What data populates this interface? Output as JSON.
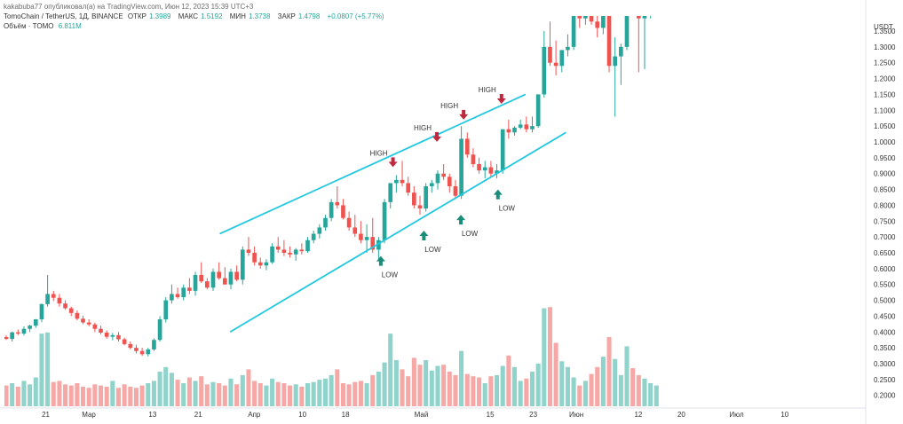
{
  "header": {
    "publisher": "kakabuba77 опубликовал(а) на TradingView.com, Июн 12, 2023 15:39 UTC+3",
    "symbol": "TomoChain / TetherUS, 1Д, BINANCE",
    "open_label": "ОТКР",
    "open_value": "1.3989",
    "high_label": "МАКС",
    "high_value": "1.5192",
    "low_label": "МИН",
    "low_value": "1.3738",
    "close_label": "ЗАКР",
    "close_value": "1.4798",
    "change": "+0.0807 (+5.77%)",
    "volume_label": "Объём · TOMO",
    "volume_value": "6.811M"
  },
  "colors": {
    "up": "#26a69a",
    "down": "#ef5350",
    "volume_up": "#8fd3cb",
    "volume_down": "#f5a8a6",
    "channel": "#22c8e0",
    "high_marker": "#c0283f",
    "low_marker": "#1c8c7a"
  },
  "chart_data": {
    "type": "candlestick",
    "currency_label": "USDT",
    "y_ticks": [
      "1.3500",
      "1.3000",
      "1.2500",
      "1.2000",
      "1.1500",
      "1.1000",
      "1.0500",
      "1.0000",
      "0.9500",
      "0.9000",
      "0.8500",
      "0.8000",
      "0.7500",
      "0.7000",
      "0.6500",
      "0.6000",
      "0.5500",
      "0.5000",
      "0.4500",
      "0.4000",
      "0.3500",
      "0.3000",
      "0.2500",
      "0.2000"
    ],
    "ylim": [
      0.16,
      1.42
    ],
    "x_ticks": [
      {
        "label": "21",
        "x": 0.048
      },
      {
        "label": "Мар",
        "x": 0.098
      },
      {
        "label": "13",
        "x": 0.172
      },
      {
        "label": "21",
        "x": 0.225
      },
      {
        "label": "Апр",
        "x": 0.29
      },
      {
        "label": "10",
        "x": 0.346
      },
      {
        "label": "18",
        "x": 0.396
      },
      {
        "label": "Май",
        "x": 0.484
      },
      {
        "label": "15",
        "x": 0.564
      },
      {
        "label": "23",
        "x": 0.614
      },
      {
        "label": "Июн",
        "x": 0.664
      },
      {
        "label": "12",
        "x": 0.736
      },
      {
        "label": "20",
        "x": 0.786
      },
      {
        "label": "Июл",
        "x": 0.85
      },
      {
        "label": "10",
        "x": 0.906
      }
    ],
    "annotations": [
      {
        "text": "HIGH",
        "kind": "high",
        "x": 0.447,
        "y": 0.94
      },
      {
        "text": "HIGH",
        "kind": "high",
        "x": 0.498,
        "y": 1.02
      },
      {
        "text": "HIGH",
        "kind": "high",
        "x": 0.529,
        "y": 1.09
      },
      {
        "text": "HIGH",
        "kind": "high",
        "x": 0.573,
        "y": 1.14
      },
      {
        "text": "LOW",
        "kind": "low",
        "x": 0.437,
        "y": 0.64
      },
      {
        "text": "LOW",
        "kind": "low",
        "x": 0.487,
        "y": 0.72
      },
      {
        "text": "LOW",
        "kind": "low",
        "x": 0.53,
        "y": 0.77
      },
      {
        "text": "LOW",
        "kind": "low",
        "x": 0.573,
        "y": 0.85
      }
    ],
    "channel_upper": {
      "x1": 0.25,
      "y1": 0.71,
      "x2": 0.605,
      "y2": 1.15
    },
    "channel_lower": {
      "x1": 0.262,
      "y1": 0.4,
      "x2": 0.652,
      "y2": 1.03
    },
    "candles": [
      [
        0.384,
        0.39,
        0.375,
        0.378
      ],
      [
        0.378,
        0.401,
        0.37,
        0.399
      ],
      [
        0.399,
        0.408,
        0.39,
        0.395
      ],
      [
        0.395,
        0.418,
        0.389,
        0.41
      ],
      [
        0.41,
        0.423,
        0.4,
        0.42
      ],
      [
        0.42,
        0.441,
        0.413,
        0.44
      ],
      [
        0.44,
        0.49,
        0.431,
        0.488
      ],
      [
        0.488,
        0.58,
        0.48,
        0.52
      ],
      [
        0.52,
        0.53,
        0.498,
        0.508
      ],
      [
        0.508,
        0.52,
        0.48,
        0.49
      ],
      [
        0.49,
        0.5,
        0.47,
        0.475
      ],
      [
        0.475,
        0.48,
        0.45,
        0.46
      ],
      [
        0.46,
        0.468,
        0.437,
        0.442
      ],
      [
        0.442,
        0.451,
        0.425,
        0.43
      ],
      [
        0.43,
        0.44,
        0.418,
        0.424
      ],
      [
        0.424,
        0.43,
        0.4,
        0.41
      ],
      [
        0.41,
        0.42,
        0.393,
        0.398
      ],
      [
        0.398,
        0.405,
        0.379,
        0.385
      ],
      [
        0.385,
        0.397,
        0.374,
        0.39
      ],
      [
        0.39,
        0.4,
        0.37,
        0.377
      ],
      [
        0.377,
        0.382,
        0.358,
        0.362
      ],
      [
        0.362,
        0.37,
        0.345,
        0.35
      ],
      [
        0.35,
        0.36,
        0.332,
        0.34
      ],
      [
        0.34,
        0.35,
        0.325,
        0.33
      ],
      [
        0.33,
        0.35,
        0.323,
        0.345
      ],
      [
        0.345,
        0.38,
        0.34,
        0.375
      ],
      [
        0.375,
        0.45,
        0.37,
        0.44
      ],
      [
        0.44,
        0.51,
        0.43,
        0.5
      ],
      [
        0.5,
        0.55,
        0.49,
        0.52
      ],
      [
        0.52,
        0.54,
        0.505,
        0.51
      ],
      [
        0.51,
        0.55,
        0.5,
        0.54
      ],
      [
        0.54,
        0.57,
        0.52,
        0.53
      ],
      [
        0.53,
        0.59,
        0.515,
        0.58
      ],
      [
        0.58,
        0.62,
        0.555,
        0.56
      ],
      [
        0.56,
        0.57,
        0.535,
        0.54
      ],
      [
        0.54,
        0.6,
        0.53,
        0.59
      ],
      [
        0.59,
        0.62,
        0.565,
        0.57
      ],
      [
        0.57,
        0.605,
        0.55,
        0.55
      ],
      [
        0.55,
        0.6,
        0.535,
        0.59
      ],
      [
        0.59,
        0.61,
        0.56,
        0.565
      ],
      [
        0.565,
        0.67,
        0.55,
        0.66
      ],
      [
        0.66,
        0.7,
        0.64,
        0.65
      ],
      [
        0.65,
        0.67,
        0.61,
        0.62
      ],
      [
        0.62,
        0.635,
        0.6,
        0.61
      ],
      [
        0.61,
        0.63,
        0.595,
        0.62
      ],
      [
        0.62,
        0.68,
        0.615,
        0.67
      ],
      [
        0.67,
        0.7,
        0.65,
        0.66
      ],
      [
        0.66,
        0.69,
        0.64,
        0.65
      ],
      [
        0.65,
        0.67,
        0.635,
        0.645
      ],
      [
        0.645,
        0.665,
        0.625,
        0.66
      ],
      [
        0.66,
        0.68,
        0.645,
        0.655
      ],
      [
        0.655,
        0.7,
        0.65,
        0.69
      ],
      [
        0.69,
        0.72,
        0.68,
        0.71
      ],
      [
        0.71,
        0.74,
        0.695,
        0.73
      ],
      [
        0.73,
        0.77,
        0.72,
        0.76
      ],
      [
        0.76,
        0.82,
        0.75,
        0.81
      ],
      [
        0.81,
        0.86,
        0.79,
        0.8
      ],
      [
        0.8,
        0.82,
        0.755,
        0.76
      ],
      [
        0.76,
        0.78,
        0.72,
        0.73
      ],
      [
        0.73,
        0.77,
        0.7,
        0.71
      ],
      [
        0.71,
        0.75,
        0.68,
        0.69
      ],
      [
        0.69,
        0.74,
        0.65,
        0.7
      ],
      [
        0.7,
        0.76,
        0.65,
        0.66
      ],
      [
        0.66,
        0.7,
        0.63,
        0.69
      ],
      [
        0.69,
        0.82,
        0.68,
        0.81
      ],
      [
        0.81,
        0.87,
        0.79,
        0.87
      ],
      [
        0.87,
        0.895,
        0.84,
        0.88
      ],
      [
        0.88,
        0.94,
        0.86,
        0.87
      ],
      [
        0.87,
        0.89,
        0.83,
        0.84
      ],
      [
        0.84,
        0.86,
        0.79,
        0.8
      ],
      [
        0.8,
        0.83,
        0.77,
        0.79
      ],
      [
        0.79,
        0.87,
        0.78,
        0.86
      ],
      [
        0.86,
        0.88,
        0.84,
        0.87
      ],
      [
        0.87,
        0.91,
        0.85,
        0.9
      ],
      [
        0.9,
        0.93,
        0.88,
        0.89
      ],
      [
        0.89,
        0.9,
        0.84,
        0.86
      ],
      [
        0.86,
        0.88,
        0.82,
        0.83
      ],
      [
        0.83,
        1.05,
        0.82,
        1.01
      ],
      [
        1.01,
        1.03,
        0.95,
        0.96
      ],
      [
        0.96,
        0.98,
        0.92,
        0.93
      ],
      [
        0.93,
        0.95,
        0.9,
        0.91
      ],
      [
        0.91,
        0.94,
        0.885,
        0.92
      ],
      [
        0.92,
        0.94,
        0.89,
        0.9
      ],
      [
        0.9,
        0.93,
        0.885,
        0.91
      ],
      [
        0.91,
        1.04,
        0.9,
        1.04
      ],
      [
        1.04,
        1.07,
        1.01,
        1.03
      ],
      [
        1.03,
        1.05,
        1.02,
        1.045
      ],
      [
        1.045,
        1.07,
        1.04,
        1.055
      ],
      [
        1.055,
        1.08,
        1.03,
        1.04
      ],
      [
        1.04,
        1.08,
        1.03,
        1.05
      ],
      [
        1.05,
        1.15,
        1.045,
        1.15
      ],
      [
        1.15,
        1.35,
        1.14,
        1.3
      ],
      [
        1.3,
        1.38,
        1.24,
        1.25
      ],
      [
        1.25,
        1.32,
        1.21,
        1.24
      ],
      [
        1.24,
        1.29,
        1.22,
        1.29
      ],
      [
        1.29,
        1.34,
        1.27,
        1.3
      ],
      [
        1.3,
        1.45,
        1.29,
        1.43
      ],
      [
        1.43,
        1.5,
        1.36,
        1.39
      ],
      [
        1.39,
        1.5,
        1.37,
        1.45
      ],
      [
        1.45,
        1.48,
        1.37,
        1.38
      ],
      [
        1.38,
        1.43,
        1.33,
        1.36
      ],
      [
        1.36,
        1.45,
        1.34,
        1.44
      ],
      [
        1.44,
        1.46,
        1.22,
        1.24
      ],
      [
        1.24,
        1.33,
        1.08,
        1.27
      ],
      [
        1.27,
        1.31,
        1.18,
        1.3
      ],
      [
        1.3,
        1.45,
        1.29,
        1.45
      ],
      [
        1.45,
        1.47,
        1.41,
        1.42
      ],
      [
        1.42,
        1.45,
        1.22,
        1.39
      ],
      [
        1.39,
        1.45,
        1.23,
        1.44
      ],
      [
        1.44,
        1.48,
        1.39,
        1.44
      ],
      [
        1.44,
        1.47,
        1.43,
        1.46
      ]
    ],
    "volume": [
      0.18,
      0.2,
      0.17,
      0.22,
      0.19,
      0.25,
      0.63,
      0.64,
      0.21,
      0.22,
      0.19,
      0.18,
      0.2,
      0.17,
      0.16,
      0.19,
      0.18,
      0.17,
      0.22,
      0.16,
      0.19,
      0.17,
      0.16,
      0.18,
      0.2,
      0.22,
      0.3,
      0.34,
      0.29,
      0.23,
      0.2,
      0.25,
      0.22,
      0.26,
      0.19,
      0.21,
      0.2,
      0.18,
      0.24,
      0.19,
      0.27,
      0.32,
      0.22,
      0.2,
      0.18,
      0.24,
      0.21,
      0.2,
      0.18,
      0.19,
      0.17,
      0.2,
      0.21,
      0.23,
      0.24,
      0.27,
      0.32,
      0.2,
      0.19,
      0.21,
      0.22,
      0.2,
      0.27,
      0.3,
      0.38,
      0.63,
      0.4,
      0.32,
      0.26,
      0.42,
      0.36,
      0.4,
      0.31,
      0.35,
      0.36,
      0.3,
      0.27,
      0.48,
      0.28,
      0.26,
      0.25,
      0.2,
      0.26,
      0.27,
      0.35,
      0.44,
      0.34,
      0.22,
      0.24,
      0.3,
      0.37,
      0.85,
      0.86,
      0.55,
      0.39,
      0.34,
      0.25,
      0.18,
      0.22,
      0.28,
      0.34,
      0.43,
      0.6,
      0.41,
      0.27,
      0.52,
      0.33,
      0.27,
      0.24,
      0.2,
      0.18
    ],
    "volume_max": 1.0
  }
}
